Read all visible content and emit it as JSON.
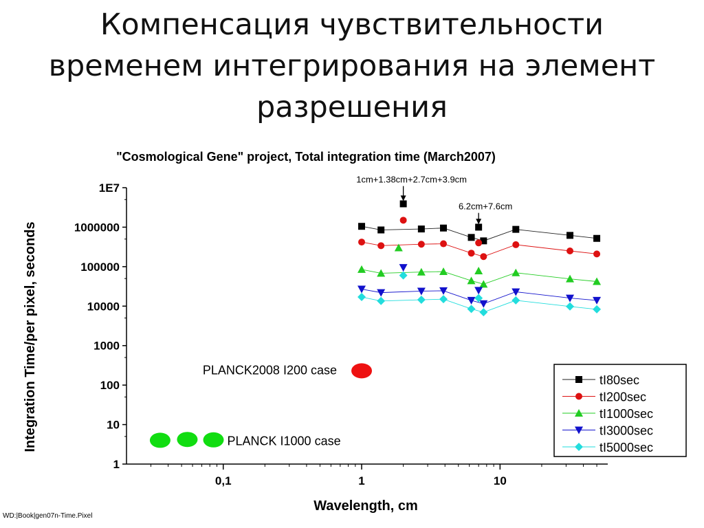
{
  "slide": {
    "title_lines": [
      "Компенсация  чувствительности",
      "временем интегрирования на элемент",
      "разрешения"
    ]
  },
  "footer": "WD:|Book|gen07n-Time.Pixel",
  "chart_data": {
    "type": "scatter",
    "title": "\"Cosmological Gene\" project, Total integration time (March2007)",
    "xlabel": "Wavelength, cm",
    "ylabel": "Integration Time/per pixel, seconds",
    "x_scale": "log",
    "y_scale": "log",
    "xlim": [
      0.02,
      60
    ],
    "ylim": [
      1,
      10000000
    ],
    "x_ticks": [
      {
        "value": 0.1,
        "label": "0,1"
      },
      {
        "value": 1,
        "label": "1"
      },
      {
        "value": 10,
        "label": "10"
      }
    ],
    "y_ticks": [
      {
        "value": 1,
        "label": "1"
      },
      {
        "value": 10,
        "label": "10"
      },
      {
        "value": 100,
        "label": "100"
      },
      {
        "value": 1000,
        "label": "1000"
      },
      {
        "value": 10000,
        "label": "10000"
      },
      {
        "value": 100000,
        "label": "100000"
      },
      {
        "value": 1000000,
        "label": "1000000"
      },
      {
        "value": 10000000,
        "label": "1E7"
      }
    ],
    "legend_position": "bottom-right",
    "series": [
      {
        "name": "tI80sec",
        "color": "#000000",
        "marker": "square",
        "x": [
          1,
          1.38,
          2.7,
          3.9,
          6.2,
          7.6,
          13,
          32,
          50
        ],
        "y": [
          1050000,
          850000,
          900000,
          950000,
          550000,
          450000,
          880000,
          620000,
          520000
        ]
      },
      {
        "name": "tI200sec",
        "color": "#dd1111",
        "marker": "circle",
        "x": [
          1,
          1.38,
          2.7,
          3.9,
          6.2,
          7.6,
          13,
          32,
          50
        ],
        "y": [
          420000,
          340000,
          370000,
          380000,
          220000,
          180000,
          360000,
          250000,
          210000
        ]
      },
      {
        "name": "tI1000sec",
        "color": "#22cc22",
        "marker": "triangle-up",
        "x": [
          1,
          1.38,
          2.7,
          3.9,
          6.2,
          7.6,
          13,
          32,
          50
        ],
        "y": [
          85000,
          68000,
          73000,
          75000,
          44000,
          36000,
          70000,
          49000,
          42000
        ]
      },
      {
        "name": "tI3000sec",
        "color": "#1111cc",
        "marker": "triangle-down",
        "x": [
          1,
          1.38,
          2.7,
          3.9,
          6.2,
          7.6,
          13,
          32,
          50
        ],
        "y": [
          27000,
          22000,
          24000,
          24500,
          14000,
          11500,
          23000,
          16000,
          14000
        ]
      },
      {
        "name": "tI5000sec",
        "color": "#22dddd",
        "marker": "diamond",
        "x": [
          1,
          1.38,
          2.7,
          3.9,
          6.2,
          7.6,
          13,
          32,
          50
        ],
        "y": [
          17000,
          13500,
          14500,
          15000,
          8500,
          7000,
          14000,
          9800,
          8300
        ]
      }
    ],
    "extra_points": [
      {
        "x": 2,
        "y": 3900000,
        "color": "#000000",
        "marker": "square"
      },
      {
        "x": 2,
        "y": 1500000,
        "color": "#dd1111",
        "marker": "circle"
      },
      {
        "x": 1.85,
        "y": 300000,
        "color": "#22cc22",
        "marker": "triangle-up"
      },
      {
        "x": 2,
        "y": 95000,
        "color": "#1111cc",
        "marker": "triangle-down"
      },
      {
        "x": 2,
        "y": 60000,
        "color": "#22dddd",
        "marker": "diamond"
      },
      {
        "x": 7,
        "y": 1000000,
        "color": "#000000",
        "marker": "square"
      },
      {
        "x": 7,
        "y": 400000,
        "color": "#dd1111",
        "marker": "circle"
      },
      {
        "x": 7,
        "y": 78000,
        "color": "#22cc22",
        "marker": "triangle-up"
      },
      {
        "x": 7,
        "y": 25000,
        "color": "#1111cc",
        "marker": "triangle-down"
      },
      {
        "x": 7,
        "y": 16000,
        "color": "#22dddd",
        "marker": "diamond"
      }
    ],
    "annotations": [
      {
        "text": "1cm+1.38cm+2.7cm+3.9cm",
        "arrow_x": 2,
        "arrow_from_y": 11000000,
        "arrow_to_y": 4600000
      },
      {
        "text": "6.2cm+7.6cm",
        "arrow_x": 7,
        "arrow_from_y": 2300000,
        "arrow_to_y": 1180000
      }
    ],
    "planck_points": [
      {
        "label": "PLANCK2008 I200 case",
        "color": "#ee1111",
        "points": [
          {
            "x": 1,
            "y": 230
          }
        ]
      },
      {
        "label": "PLANCK I1000 case",
        "color": "#11dd11",
        "points": [
          {
            "x": 0.035,
            "y": 4
          },
          {
            "x": 0.055,
            "y": 4.2
          },
          {
            "x": 0.085,
            "y": 4.1
          }
        ]
      }
    ]
  }
}
